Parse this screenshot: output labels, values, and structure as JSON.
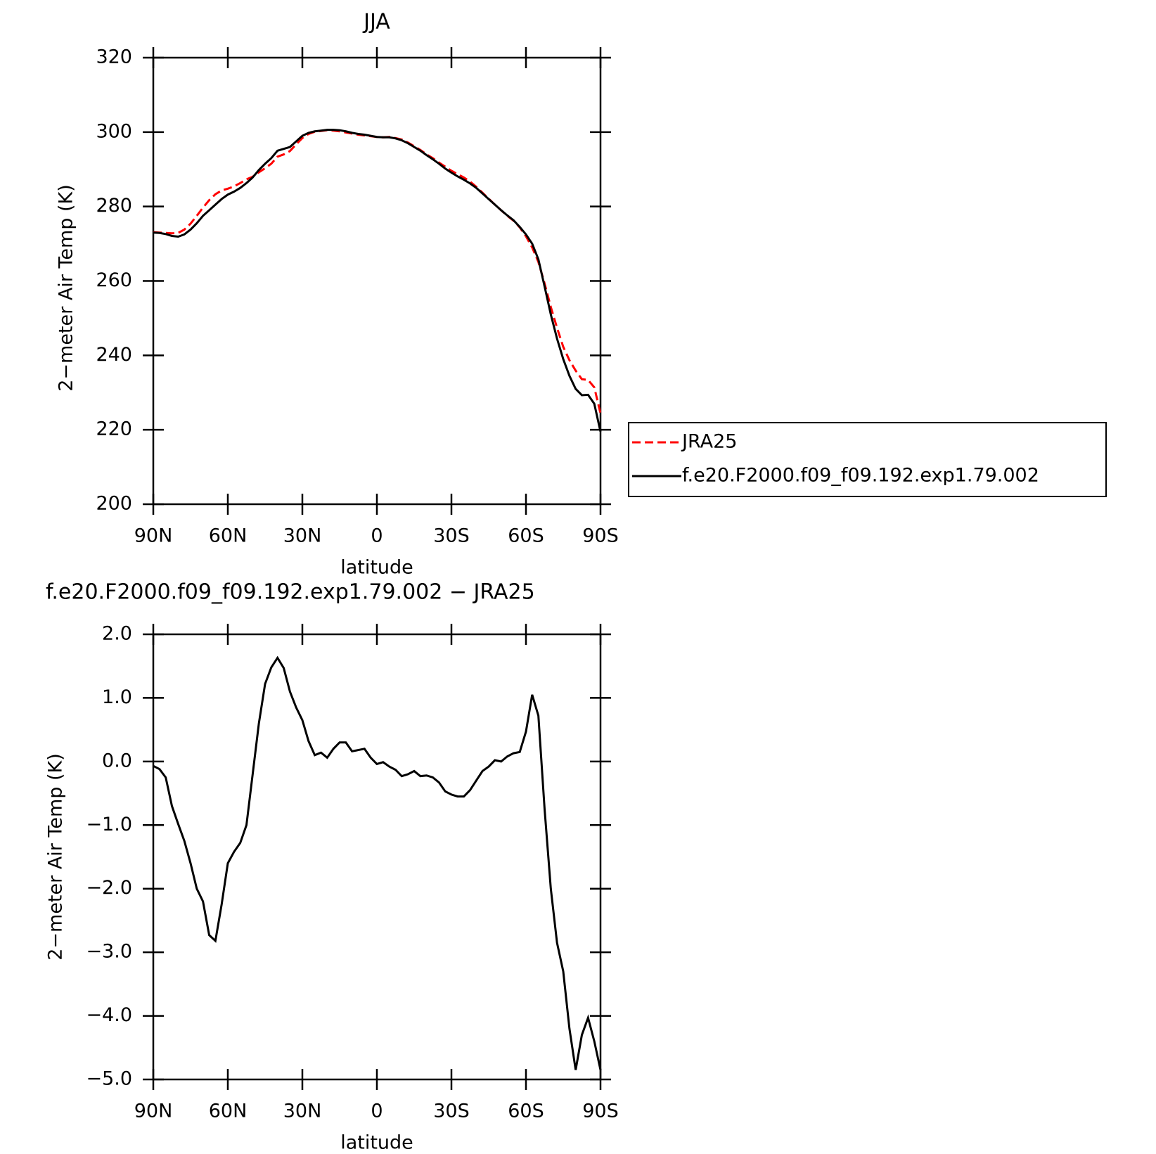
{
  "chart_data": [
    {
      "type": "line",
      "title": "JJA",
      "xlabel": "latitude",
      "ylabel": "2−meter Air Temp (K)",
      "x": [
        90,
        87.5,
        85,
        82.5,
        80,
        77.5,
        75,
        72.5,
        70,
        67.5,
        65,
        62.5,
        60,
        57.5,
        55,
        52.5,
        50,
        47.5,
        45,
        42.5,
        40,
        37.5,
        35,
        32.5,
        30,
        27.5,
        25,
        22.5,
        20,
        17.5,
        15,
        12.5,
        10,
        7.5,
        5,
        2.5,
        0,
        -2.5,
        -5,
        -7.5,
        -10,
        -12.5,
        -15,
        -17.5,
        -20,
        -22.5,
        -25,
        -27.5,
        -30,
        -32.5,
        -35,
        -37.5,
        -40,
        -42.5,
        -45,
        -47.5,
        -50,
        -52.5,
        -55,
        -57.5,
        -60,
        -62.5,
        -65,
        -67.5,
        -70,
        -72.5,
        -75,
        -77.5,
        -80,
        -82.5,
        -85,
        -87.5,
        -90
      ],
      "series": [
        {
          "name": "JRA25",
          "color": "#ff0000",
          "dash": true,
          "values": [
            273.1,
            273.0,
            272.9,
            272.8,
            272.9,
            273.8,
            275.4,
            277.5,
            279.7,
            281.7,
            283.3,
            284.3,
            284.8,
            285.4,
            286.3,
            287.3,
            288.0,
            289.2,
            290.3,
            291.5,
            293.4,
            294.0,
            294.9,
            296.7,
            298.4,
            299.5,
            300.1,
            300.3,
            300.5,
            300.4,
            300.2,
            299.9,
            299.6,
            299.3,
            299.1,
            298.9,
            298.7,
            298.6,
            298.7,
            298.4,
            298.0,
            297.2,
            296.2,
            295.2,
            294.0,
            293.0,
            291.8,
            290.7,
            289.6,
            288.7,
            287.8,
            286.7,
            285.3,
            283.7,
            282.1,
            280.5,
            279.0,
            277.5,
            276.2,
            274.4,
            272.0,
            269.0,
            265.1,
            259.3,
            253.0,
            247.4,
            242.3,
            238.7,
            235.9,
            233.6,
            233.4,
            231.4,
            224.4
          ]
        },
        {
          "name": "f.e20.F2000.f09_f09.192.exp1.79.002",
          "color": "#000000",
          "dash": false,
          "values": [
            273.0,
            272.9,
            272.6,
            272.1,
            271.9,
            272.5,
            273.8,
            275.5,
            277.5,
            279.0,
            280.5,
            282.0,
            283.2,
            284.0,
            285.0,
            286.3,
            287.8,
            289.8,
            291.5,
            293.0,
            295.0,
            295.5,
            296.0,
            297.5,
            299.0,
            299.8,
            300.2,
            300.4,
            300.6,
            300.6,
            300.5,
            300.2,
            299.8,
            299.5,
            299.3,
            299.0,
            298.7,
            298.6,
            298.6,
            298.3,
            297.8,
            297.0,
            296.0,
            295.0,
            293.8,
            292.7,
            291.5,
            290.2,
            289.1,
            288.1,
            287.2,
            286.2,
            285.0,
            283.5,
            282.0,
            280.5,
            279.0,
            277.6,
            276.3,
            274.5,
            272.5,
            270.0,
            265.8,
            258.5,
            251.0,
            244.5,
            239.0,
            234.5,
            231.0,
            229.3,
            229.4,
            227.0,
            219.5
          ]
        }
      ],
      "xlim": [
        90,
        -90
      ],
      "xticks": [
        {
          "value": 90,
          "label": "90N"
        },
        {
          "value": 60,
          "label": "60N"
        },
        {
          "value": 30,
          "label": "30N"
        },
        0,
        {
          "value": -30,
          "label": "30S"
        },
        {
          "value": -60,
          "label": "60S"
        },
        {
          "value": -90,
          "label": "90S"
        }
      ],
      "ylim": [
        200,
        320
      ],
      "yticks": [
        200,
        220,
        240,
        260,
        280,
        300,
        320
      ],
      "legend": "outside-right"
    },
    {
      "type": "line",
      "title": "f.e20.F2000.f09_f09.192.exp1.79.002 − JRA25",
      "xlabel": "latitude",
      "ylabel": "2−meter Air Temp (K)",
      "x": [
        90,
        87.5,
        85,
        82.5,
        80,
        77.5,
        75,
        72.5,
        70,
        67.5,
        65,
        62.5,
        60,
        57.5,
        55,
        52.5,
        50,
        47.5,
        45,
        42.5,
        40,
        37.5,
        35,
        32.5,
        30,
        27.5,
        25,
        22.5,
        20,
        17.5,
        15,
        12.5,
        10,
        7.5,
        5,
        2.5,
        0,
        -2.5,
        -5,
        -7.5,
        -10,
        -12.5,
        -15,
        -17.5,
        -20,
        -22.5,
        -25,
        -27.5,
        -30,
        -32.5,
        -35,
        -37.5,
        -40,
        -42.5,
        -45,
        -47.5,
        -50,
        -52.5,
        -55,
        -57.5,
        -60,
        -62.5,
        -65,
        -67.5,
        -70,
        -72.5,
        -75,
        -77.5,
        -80,
        -82.5,
        -85,
        -87.5,
        -90
      ],
      "color": "#000000",
      "values": [
        -0.07,
        -0.12,
        -0.25,
        -0.7,
        -0.98,
        -1.25,
        -1.6,
        -2.0,
        -2.2,
        -2.73,
        -2.82,
        -2.25,
        -1.6,
        -1.42,
        -1.28,
        -1.0,
        -0.2,
        0.6,
        1.22,
        1.48,
        1.63,
        1.47,
        1.1,
        0.85,
        0.65,
        0.32,
        0.1,
        0.14,
        0.06,
        0.2,
        0.3,
        0.3,
        0.16,
        0.18,
        0.2,
        0.06,
        -0.04,
        -0.01,
        -0.08,
        -0.13,
        -0.23,
        -0.2,
        -0.15,
        -0.23,
        -0.22,
        -0.25,
        -0.33,
        -0.47,
        -0.52,
        -0.55,
        -0.55,
        -0.45,
        -0.3,
        -0.15,
        -0.08,
        0.02,
        0.0,
        0.08,
        0.13,
        0.15,
        0.47,
        1.05,
        0.72,
        -0.75,
        -2.0,
        -2.85,
        -3.3,
        -4.2,
        -4.85,
        -4.3,
        -4.03,
        -4.4,
        -4.85
      ],
      "xlim": [
        90,
        -90
      ],
      "xticks": [
        {
          "value": 90,
          "label": "90N"
        },
        {
          "value": 60,
          "label": "60N"
        },
        {
          "value": 30,
          "label": "30N"
        },
        0,
        {
          "value": -30,
          "label": "30S"
        },
        {
          "value": -60,
          "label": "60S"
        },
        {
          "value": -90,
          "label": "90S"
        }
      ],
      "ylim": [
        -5,
        2
      ],
      "yticks": [
        {
          "value": -5,
          "label": "−5.0"
        },
        {
          "value": -4,
          "label": "−4.0"
        },
        {
          "value": -3,
          "label": "−3.0"
        },
        {
          "value": -2,
          "label": "−2.0"
        },
        {
          "value": -1,
          "label": "−1.0"
        },
        {
          "value": 0,
          "label": "0.0"
        },
        {
          "value": 1,
          "label": "1.0"
        },
        {
          "value": 2,
          "label": "2.0"
        }
      ]
    }
  ]
}
